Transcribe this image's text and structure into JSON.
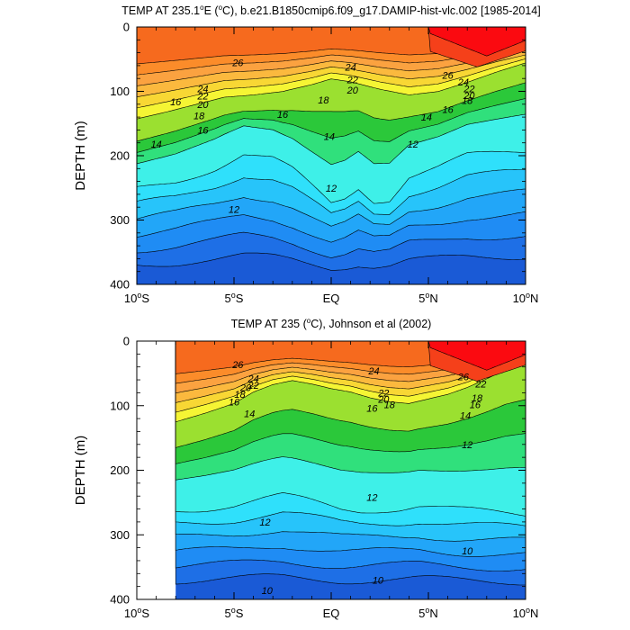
{
  "chart_data": [
    {
      "type": "contour",
      "title_parts": [
        "TEMP AT 235.1",
        "o",
        "E (",
        "o",
        "C), b.e21.B1850cmip6.f09_g17.DAMIP-hist-vlc.002 [1985-2014]"
      ],
      "ylabel": "DEPTH (m)",
      "xlim": [
        -10,
        10
      ],
      "ylim": [
        400,
        0
      ],
      "x_ticks": [
        {
          "v": -10,
          "num": "10",
          "deg": "o",
          "hemi": "S"
        },
        {
          "v": -5,
          "num": "5",
          "deg": "o",
          "hemi": "S"
        },
        {
          "v": 0,
          "num": "EQ",
          "deg": "",
          "hemi": ""
        },
        {
          "v": 5,
          "num": "5",
          "deg": "o",
          "hemi": "N"
        },
        {
          "v": 10,
          "num": "10",
          "deg": "o",
          "hemi": "N"
        }
      ],
      "y_ticks": [
        "0",
        "100",
        "200",
        "300",
        "400"
      ],
      "contour_interval": 2,
      "colors": [
        "#1a5ad6",
        "#1e6fe6",
        "#1f8cf4",
        "#22a6f8",
        "#27c4fa",
        "#2fe0fb",
        "#3ef0e8",
        "#30e07c",
        "#2bc83a",
        "#9be030",
        "#f5f534",
        "#f8d734",
        "#fbb93e",
        "#fba240",
        "#fb8c2a",
        "#f66a1e",
        "#f5401a",
        "#fb0a10"
      ],
      "thermocline": [
        [
          -10,
          160
        ],
        [
          -8.5,
          148
        ],
        [
          -7,
          135
        ],
        [
          -5.5,
          122
        ],
        [
          -4,
          118
        ],
        [
          -2.5,
          112
        ],
        [
          -1,
          100
        ],
        [
          0,
          90
        ],
        [
          1,
          95
        ],
        [
          2.5,
          108
        ],
        [
          4,
          118
        ],
        [
          5.5,
          112
        ],
        [
          7,
          96
        ],
        [
          8.5,
          78
        ],
        [
          10,
          62
        ]
      ],
      "cool_layer": [
        [
          -10,
          230
        ],
        [
          -8,
          215
        ],
        [
          -6,
          190
        ],
        [
          -4.5,
          165
        ],
        [
          -3,
          175
        ],
        [
          -2,
          195
        ],
        [
          -1,
          225
        ],
        [
          0,
          255
        ],
        [
          0.7,
          245
        ],
        [
          1.4,
          225
        ],
        [
          2.2,
          248
        ],
        [
          3,
          245
        ],
        [
          4,
          205
        ],
        [
          5.5,
          190
        ],
        [
          7,
          170
        ],
        [
          8.5,
          165
        ],
        [
          10,
          160
        ]
      ],
      "contour_labels": [
        {
          "x": -4.8,
          "y": 55,
          "t": "26"
        },
        {
          "x": 1.0,
          "y": 62,
          "t": "24"
        },
        {
          "x": 1.1,
          "y": 82,
          "t": "22"
        },
        {
          "x": 1.1,
          "y": 98,
          "t": "20"
        },
        {
          "x": -0.4,
          "y": 113,
          "t": "18"
        },
        {
          "x": -2.5,
          "y": 136,
          "t": "16"
        },
        {
          "x": -0.1,
          "y": 170,
          "t": "14"
        },
        {
          "x": -8.0,
          "y": 116,
          "t": "16"
        },
        {
          "x": -6.6,
          "y": 96,
          "t": "24"
        },
        {
          "x": -6.6,
          "y": 107,
          "t": "22"
        },
        {
          "x": -6.6,
          "y": 120,
          "t": "20"
        },
        {
          "x": -6.8,
          "y": 138,
          "t": "18"
        },
        {
          "x": -6.6,
          "y": 160,
          "t": "16"
        },
        {
          "x": -9.0,
          "y": 182,
          "t": "14"
        },
        {
          "x": -5.0,
          "y": 283,
          "t": "12"
        },
        {
          "x": 0.0,
          "y": 250,
          "t": "12"
        },
        {
          "x": 4.2,
          "y": 182,
          "t": "12"
        },
        {
          "x": 6.0,
          "y": 75,
          "t": "26"
        },
        {
          "x": 6.8,
          "y": 85,
          "t": "24"
        },
        {
          "x": 7.1,
          "y": 96,
          "t": "22"
        },
        {
          "x": 7.1,
          "y": 106,
          "t": "20"
        },
        {
          "x": 7.0,
          "y": 114,
          "t": "18"
        },
        {
          "x": 6.0,
          "y": 128,
          "t": "16"
        },
        {
          "x": 4.9,
          "y": 140,
          "t": "14"
        }
      ]
    },
    {
      "type": "contour",
      "title_parts": [
        "TEMP AT 235 (",
        "o",
        "C), Johnson et al (2002)"
      ],
      "ylabel": "DEPTH (m)",
      "xlim": [
        -10,
        10
      ],
      "ylim": [
        400,
        0
      ],
      "data_xlim": [
        -8,
        10
      ],
      "x_ticks": [
        {
          "v": -10,
          "num": "10",
          "deg": "o",
          "hemi": "S"
        },
        {
          "v": -5,
          "num": "5",
          "deg": "o",
          "hemi": "S"
        },
        {
          "v": 0,
          "num": "EQ",
          "deg": "",
          "hemi": ""
        },
        {
          "v": 5,
          "num": "5",
          "deg": "o",
          "hemi": "N"
        },
        {
          "v": 10,
          "num": "10",
          "deg": "o",
          "hemi": "N"
        }
      ],
      "y_ticks": [
        "0",
        "100",
        "200",
        "300",
        "400"
      ],
      "contour_interval": 2,
      "colors": [
        "#1a5ad6",
        "#1e6fe6",
        "#1f8cf4",
        "#22a6f8",
        "#27c4fa",
        "#2fe0fb",
        "#3ef0e8",
        "#30e07c",
        "#2bc83a",
        "#9be030",
        "#f5f534",
        "#f8d734",
        "#fbb93e",
        "#fba240",
        "#fb8c2a",
        "#f66a1e",
        "#f5401a",
        "#fb0a10"
      ],
      "thermocline": [
        [
          -8,
          140
        ],
        [
          -6.5,
          125
        ],
        [
          -5,
          108
        ],
        [
          -4,
          88
        ],
        [
          -3,
          75
        ],
        [
          -2,
          68
        ],
        [
          -1,
          74
        ],
        [
          0,
          82
        ],
        [
          1,
          88
        ],
        [
          2,
          98
        ],
        [
          3,
          105
        ],
        [
          4,
          108
        ],
        [
          5,
          100
        ],
        [
          6,
          92
        ],
        [
          7,
          80
        ],
        [
          8,
          65
        ],
        [
          9,
          48
        ],
        [
          10,
          38
        ]
      ],
      "cool_layer": [
        [
          -8,
          240
        ],
        [
          -6.5,
          236
        ],
        [
          -5,
          230
        ],
        [
          -3.5,
          220
        ],
        [
          -2.5,
          215
        ],
        [
          -1.5,
          222
        ],
        [
          -0.5,
          230
        ],
        [
          0.5,
          238
        ],
        [
          1.5,
          240
        ],
        [
          2.5,
          238
        ],
        [
          3.5,
          236
        ],
        [
          4.5,
          232
        ],
        [
          5.5,
          236
        ],
        [
          6.5,
          240
        ],
        [
          8,
          244
        ],
        [
          9,
          246
        ],
        [
          10,
          248
        ]
      ],
      "contour_labels": [
        {
          "x": -4.8,
          "y": 36,
          "t": "26"
        },
        {
          "x": -4.0,
          "y": 58,
          "t": "24"
        },
        {
          "x": -4.0,
          "y": 68,
          "t": "22"
        },
        {
          "x": -4.4,
          "y": 72,
          "t": "20"
        },
        {
          "x": -4.7,
          "y": 82,
          "t": "18"
        },
        {
          "x": -5.0,
          "y": 94,
          "t": "16"
        },
        {
          "x": -4.2,
          "y": 112,
          "t": "14"
        },
        {
          "x": 2.2,
          "y": 46,
          "t": "24"
        },
        {
          "x": 2.7,
          "y": 80,
          "t": "22"
        },
        {
          "x": 2.7,
          "y": 90,
          "t": "20"
        },
        {
          "x": 3.0,
          "y": 98,
          "t": "18"
        },
        {
          "x": 2.1,
          "y": 104,
          "t": "16"
        },
        {
          "x": 6.8,
          "y": 55,
          "t": "26"
        },
        {
          "x": 7.7,
          "y": 66,
          "t": "22"
        },
        {
          "x": 7.5,
          "y": 88,
          "t": "18"
        },
        {
          "x": 7.4,
          "y": 98,
          "t": "16"
        },
        {
          "x": 6.9,
          "y": 115,
          "t": "14"
        },
        {
          "x": 7.0,
          "y": 160,
          "t": "12"
        },
        {
          "x": 2.1,
          "y": 242,
          "t": "12"
        },
        {
          "x": -3.4,
          "y": 280,
          "t": "12"
        },
        {
          "x": 7.0,
          "y": 325,
          "t": "10"
        },
        {
          "x": 2.4,
          "y": 370,
          "t": "10"
        },
        {
          "x": -3.3,
          "y": 386,
          "t": "10"
        }
      ]
    }
  ]
}
